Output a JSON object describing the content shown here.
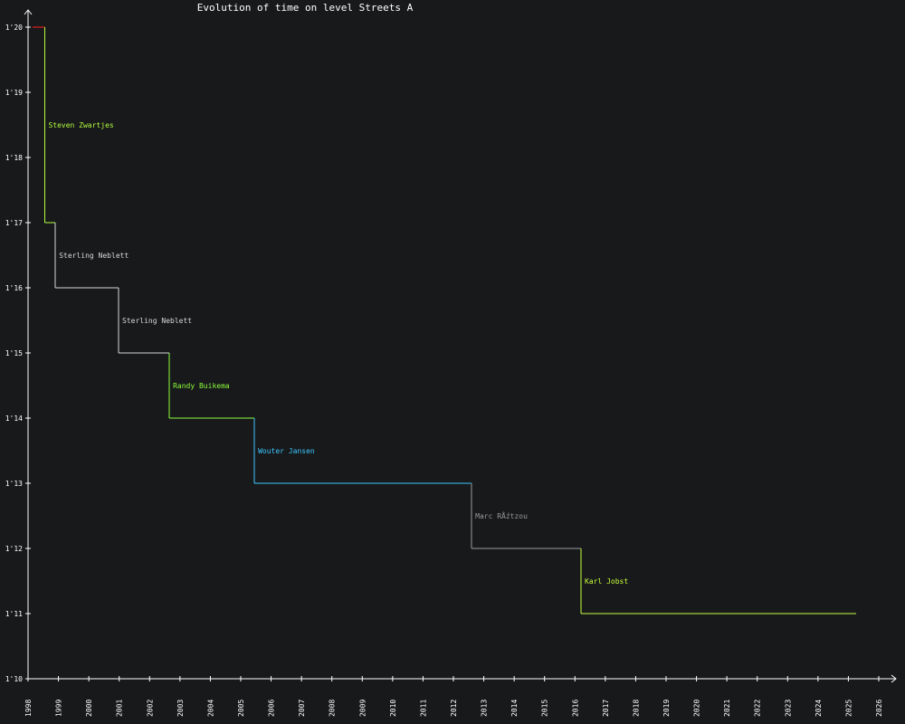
{
  "chart_data": {
    "type": "line",
    "title": "Evolution of time on level Streets A",
    "xlabel": "",
    "ylabel": "",
    "xlim": [
      1998,
      2026
    ],
    "ylim": [
      70,
      80
    ],
    "x_ticks": [
      "1998",
      "1999",
      "2000",
      "2001",
      "2002",
      "2003",
      "2004",
      "2005",
      "2006",
      "2007",
      "2008",
      "2009",
      "2010",
      "2011",
      "2012",
      "2013",
      "2014",
      "2015",
      "2016",
      "2017",
      "2018",
      "2019",
      "2020",
      "2021",
      "2022",
      "2023",
      "2024",
      "2025",
      "2026"
    ],
    "y_ticks": [
      {
        "v": 70,
        "label": "1'10"
      },
      {
        "v": 71,
        "label": "1'11"
      },
      {
        "v": 72,
        "label": "1'12"
      },
      {
        "v": 73,
        "label": "1'13"
      },
      {
        "v": 74,
        "label": "1'14"
      },
      {
        "v": 75,
        "label": "1'15"
      },
      {
        "v": 76,
        "label": "1'16"
      },
      {
        "v": 77,
        "label": "1'17"
      },
      {
        "v": 78,
        "label": "1'18"
      },
      {
        "v": 79,
        "label": "1'19"
      },
      {
        "v": 80,
        "label": "1'20"
      }
    ],
    "records": [
      {
        "player": "",
        "start": 1998.15,
        "end": 1998.55,
        "time": 80,
        "color": "#ff2020"
      },
      {
        "player": "Steven Zwartjes",
        "start": 1998.55,
        "end": 1998.9,
        "time": 77,
        "color": "#b4ff3c"
      },
      {
        "player": "Sterling Neblett",
        "start": 1998.9,
        "end": 2000.98,
        "time": 76,
        "color": "#d8d8d8"
      },
      {
        "player": "Sterling Neblett",
        "start": 2000.98,
        "end": 2002.65,
        "time": 75,
        "color": "#d8d8d8"
      },
      {
        "player": "Randy Buikema",
        "start": 2002.65,
        "end": 2005.45,
        "time": 74,
        "color": "#8cff3c"
      },
      {
        "player": "Wouter Jansen",
        "start": 2005.45,
        "end": 2012.6,
        "time": 73,
        "color": "#3cc8ff"
      },
      {
        "player": "Marc RÅźtzou",
        "start": 2012.6,
        "end": 2016.2,
        "time": 72,
        "color": "#9a9a9a"
      },
      {
        "player": "Karl Jobst",
        "start": 2016.2,
        "end": 2025.25,
        "time": 71,
        "color": "#c8ff3c"
      }
    ]
  }
}
